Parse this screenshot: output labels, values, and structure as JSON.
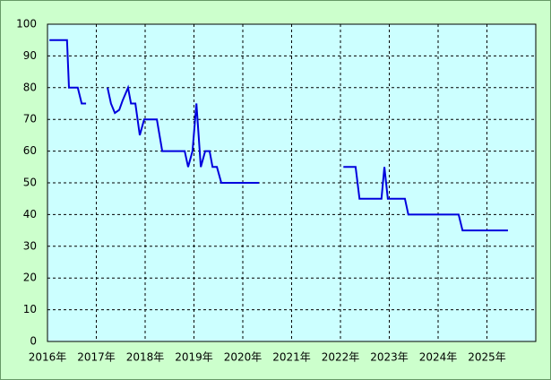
{
  "chart_data": {
    "type": "line",
    "x": [
      2016.04,
      2016.4,
      2016.44,
      2016.62,
      2016.7,
      2016.79,
      2017.0,
      2017.23,
      2017.3,
      2017.38,
      2017.47,
      2017.54,
      2017.65,
      2017.71,
      2017.8,
      2017.89,
      2017.98,
      2018.24,
      2018.35,
      2018.81,
      2018.88,
      2018.97,
      2019.05,
      2019.14,
      2019.23,
      2019.32,
      2019.38,
      2019.47,
      2019.56,
      2020.33,
      2021.0,
      2022.06,
      2022.31,
      2022.39,
      2022.84,
      2022.9,
      2022.97,
      2023.32,
      2023.39,
      2024.42,
      2024.5,
      2025.43
    ],
    "values": [
      95,
      95,
      80,
      80,
      75,
      75,
      null,
      80,
      75,
      72,
      73,
      76,
      80,
      75,
      75,
      65,
      70,
      70,
      60,
      60,
      55,
      60,
      75,
      55,
      60,
      60,
      55,
      55,
      50,
      50,
      null,
      55,
      55,
      45,
      45,
      55,
      45,
      45,
      40,
      40,
      35,
      35
    ],
    "color": "#0000dd",
    "xlim": [
      2016,
      2026
    ],
    "xticks": [
      {
        "value": 2016,
        "label": "2016年"
      },
      {
        "value": 2017,
        "label": "2017年"
      },
      {
        "value": 2018,
        "label": "2018年"
      },
      {
        "value": 2019,
        "label": "2019年"
      },
      {
        "value": 2020,
        "label": "2020年"
      },
      {
        "value": 2021,
        "label": "2021年"
      },
      {
        "value": 2022,
        "label": "2022年"
      },
      {
        "value": 2023,
        "label": "2023年"
      },
      {
        "value": 2024,
        "label": "2024年"
      },
      {
        "value": 2025,
        "label": "2025年"
      }
    ],
    "ylim": [
      0,
      100
    ],
    "yticks": [
      0,
      10,
      20,
      30,
      40,
      50,
      60,
      70,
      80,
      90,
      100
    ],
    "grid": true
  }
}
